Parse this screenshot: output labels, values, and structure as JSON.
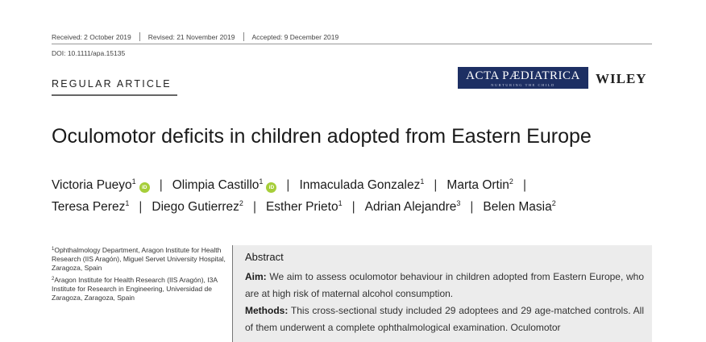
{
  "header": {
    "received": "Received: 2 October 2019",
    "revised": "Revised: 21 November 2019",
    "accepted": "Accepted: 9 December 2019",
    "doi": "DOI: 10.1111/apa.15135"
  },
  "article_type": "REGULAR ARTICLE",
  "journal": {
    "name": "ACTA PÆDIATRICA",
    "tagline": "NURTURING THE CHILD",
    "publisher": "WILEY",
    "brand_color": "#1d2f63"
  },
  "title": "Oculomotor deficits in children adopted from Eastern Europe",
  "authors": [
    {
      "name": "Victoria Pueyo",
      "aff": "1",
      "orcid": true
    },
    {
      "name": "Olimpia Castillo",
      "aff": "1",
      "orcid": true
    },
    {
      "name": "Inmaculada Gonzalez",
      "aff": "1"
    },
    {
      "name": "Marta Ortin",
      "aff": "2"
    },
    {
      "name": "Teresa Perez",
      "aff": "1"
    },
    {
      "name": "Diego Gutierrez",
      "aff": "2"
    },
    {
      "name": "Esther Prieto",
      "aff": "1"
    },
    {
      "name": "Adrian Alejandre",
      "aff": "3"
    },
    {
      "name": "Belen Masia",
      "aff": "2"
    }
  ],
  "orcid_icon": "orcid-icon",
  "orcid_label": "iD",
  "orcid_color": "#a6ce39",
  "separator": "|",
  "affiliations": [
    {
      "num": "1",
      "text": "Ophthalmology Department, Aragon Institute for Health Research (IIS Aragón), Miguel Servet University Hospital, Zaragoza, Spain"
    },
    {
      "num": "2",
      "text": "Aragon Institute for Health Research (IIS Aragón), I3A Institute for Research in Engineering, Universidad de Zaragoza, Zaragoza, Spain"
    }
  ],
  "abstract": {
    "heading": "Abstract",
    "aim_label": "Aim:",
    "aim_text": " We aim to assess oculomotor behaviour in children adopted from Eastern Europe, who are at high risk of maternal alcohol consumption.",
    "methods_label": "Methods:",
    "methods_text": " This cross-sectional study included 29 adoptees and 29 age-matched controls. All of them underwent a complete ophthalmological examination. Oculomotor"
  }
}
